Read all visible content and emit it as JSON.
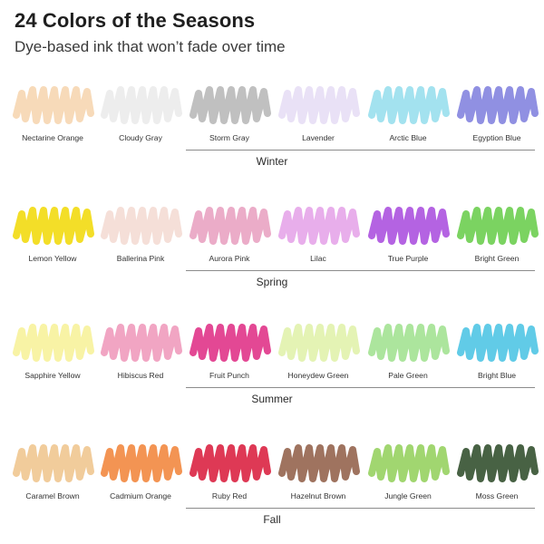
{
  "header": {
    "title": "24 Colors of the Seasons",
    "subtitle": "Dye-based ink that won’t fade over time"
  },
  "seasons": [
    {
      "name": "Winter",
      "swatches": [
        {
          "label": "Nectarine Orange",
          "color": "#f7d8b5"
        },
        {
          "label": "Cloudy Gray",
          "color": "#ececec"
        },
        {
          "label": "Storm Gray",
          "color": "#bdbdbd"
        },
        {
          "label": "Lavender",
          "color": "#e8dff5"
        },
        {
          "label": "Arctic Blue",
          "color": "#9ee0ee"
        },
        {
          "label": "Egyption Blue",
          "color": "#8a8ae0"
        }
      ]
    },
    {
      "name": "Spring",
      "swatches": [
        {
          "label": "Lemon Yellow",
          "color": "#f2dc1c"
        },
        {
          "label": "Ballerina Pink",
          "color": "#f4ddd6"
        },
        {
          "label": "Aurora Pink",
          "color": "#eaa8c5"
        },
        {
          "label": "Lilac",
          "color": "#e7aaea"
        },
        {
          "label": "True Purple",
          "color": "#b05be0"
        },
        {
          "label": "Bright Green",
          "color": "#74d159"
        }
      ]
    },
    {
      "name": "Summer",
      "swatches": [
        {
          "label": "Sapphire Yellow",
          "color": "#f8f2a0"
        },
        {
          "label": "Hibiscus Red",
          "color": "#f0a0c0"
        },
        {
          "label": "Fruit Punch",
          "color": "#e23e8e"
        },
        {
          "label": "Honeydew Green",
          "color": "#e3f2b0"
        },
        {
          "label": "Pale Green",
          "color": "#a8e498"
        },
        {
          "label": "Bright Blue",
          "color": "#58c8e6"
        }
      ]
    },
    {
      "name": "Fall",
      "swatches": [
        {
          "label": "Caramel Brown",
          "color": "#f0c996"
        },
        {
          "label": "Cadmium Orange",
          "color": "#f28e4a"
        },
        {
          "label": "Ruby Red",
          "color": "#dc2e4c"
        },
        {
          "label": "Hazelnut Brown",
          "color": "#9a6b56"
        },
        {
          "label": "Jungle Green",
          "color": "#9cd468"
        },
        {
          "label": "Moss Green",
          "color": "#3e5a3a"
        }
      ]
    }
  ]
}
